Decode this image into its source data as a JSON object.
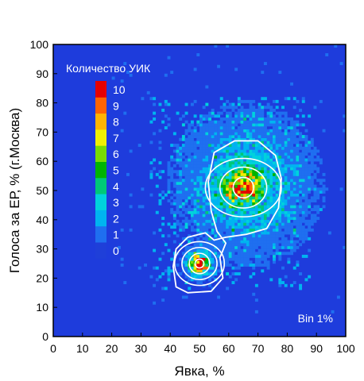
{
  "chart_data": {
    "type": "heatmap",
    "title": "",
    "xlabel": "Явка, %",
    "ylabel": "Голоса за ЕР, % (г.Москва)",
    "xlim": [
      0,
      100
    ],
    "ylim": [
      0,
      100
    ],
    "x_ticks": [
      "0",
      "10",
      "20",
      "30",
      "40",
      "50",
      "60",
      "70",
      "80",
      "90",
      "100"
    ],
    "y_ticks": [
      "0",
      "10",
      "20",
      "30",
      "40",
      "50",
      "60",
      "70",
      "80",
      "90",
      "100"
    ],
    "bin_width": 1,
    "colorbar": {
      "title": "Количество УИК",
      "levels": [
        "0",
        "1",
        "2",
        "3",
        "4",
        "5",
        "6",
        "7",
        "8",
        "9",
        "10"
      ],
      "colors": [
        "#1f3fd9",
        "#1f6ff0",
        "#00b4f0",
        "#00d2dc",
        "#00c878",
        "#00b400",
        "#78dc00",
        "#f0f000",
        "#ffb400",
        "#ff6400",
        "#e60000"
      ]
    },
    "annotation": "Bin 1%",
    "background_color": "#1e3cdc",
    "clusters": [
      {
        "center_x": 50,
        "center_y": 25,
        "peak_count": 10
      },
      {
        "center_x": 65,
        "center_y": 51,
        "peak_count": 9
      }
    ],
    "contours": [
      {
        "cx": 50,
        "cy": 25,
        "rx": 1.5,
        "ry": 1.5
      },
      {
        "cx": 50,
        "cy": 25,
        "rx": 3.5,
        "ry": 3.5
      },
      {
        "cx": 50,
        "cy": 25,
        "rx": 6,
        "ry": 5.5
      },
      {
        "cx": 50,
        "cy": 25,
        "rx": 8.5,
        "ry": 7.5
      },
      {
        "cx": 65,
        "cy": 51,
        "rx": 3.5,
        "ry": 3.5
      },
      {
        "cx": 65,
        "cy": 51,
        "rx": 8,
        "ry": 7
      },
      {
        "cx": 65,
        "cy": 51,
        "rx": 13,
        "ry": 10
      }
    ]
  }
}
